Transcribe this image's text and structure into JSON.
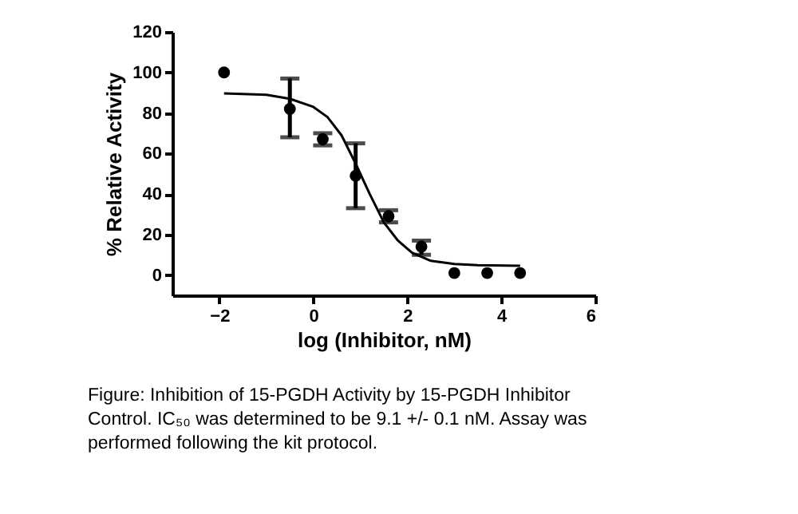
{
  "chart_data": {
    "type": "scatter",
    "xlabel": "log (Inhibitor, nM)",
    "ylabel": "% Relative  Activity",
    "xlim": [
      -3,
      6
    ],
    "xticks": [
      -2,
      0,
      2,
      4,
      6
    ],
    "ylim": [
      -10,
      120
    ],
    "yticks": [
      0,
      20,
      40,
      60,
      80,
      100,
      120
    ],
    "grid": false,
    "series": [
      {
        "color": "#000000",
        "marker": "circle",
        "x": [
          -1.9,
          -0.5,
          0.2,
          0.9,
          1.6,
          2.3,
          3.0,
          3.7,
          4.4
        ],
        "values": [
          100,
          82,
          67,
          49,
          29,
          14,
          1,
          1,
          1
        ],
        "errors": [
          null,
          [
            68,
            97
          ],
          [
            64,
            70
          ],
          [
            33,
            65
          ],
          [
            26,
            32
          ],
          [
            10,
            17
          ],
          null,
          null,
          null
        ]
      },
      {
        "type": "line",
        "color": "#000000",
        "line_style": "solid",
        "x": [
          -1.9,
          -1.0,
          -0.5,
          0.0,
          0.3,
          0.6,
          0.9,
          1.2,
          1.5,
          1.8,
          2.1,
          2.5,
          3.0,
          3.5,
          4.4
        ],
        "values": [
          89.7,
          89,
          87,
          83,
          78,
          69,
          55,
          40,
          26,
          17,
          11,
          7,
          5.5,
          4.9,
          4.6
        ]
      }
    ],
    "annotations": [
      "Figure: Inhibition of 15-PGDH Activity by 15-PGDH Inhibitor Control. IC₅₀ was determined to be 9.1 +/- 0.1 nM. Assay was performed following the kit protocol."
    ]
  }
}
